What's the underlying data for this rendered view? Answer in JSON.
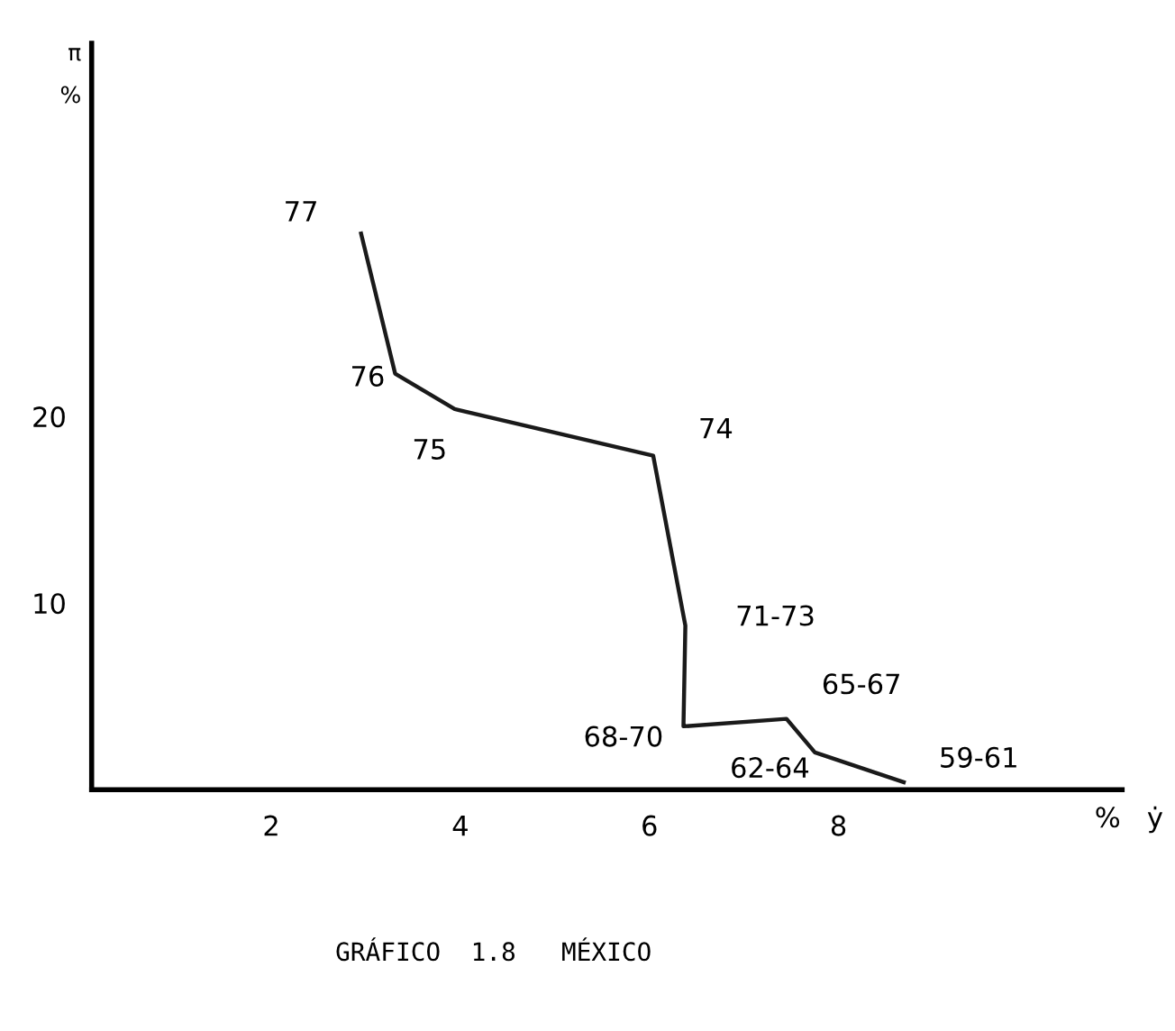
{
  "chart_data": {
    "type": "line",
    "title": "GRÁFICO  1.8   MÉXICO",
    "xlabel": "%   ẏ",
    "ylabel": "π\n%",
    "x": [
      2.95,
      3.31,
      3.94,
      6.04,
      6.38,
      6.36,
      7.45,
      7.75,
      8.69
    ],
    "series": [
      {
        "color": "#1a1a1a",
        "values": [
          29.8,
          22.3,
          20.4,
          17.9,
          8.8,
          3.4,
          3.8,
          2.0,
          0.4
        ]
      }
    ],
    "annotations": [
      {
        "text": "77",
        "x": 2.95,
        "y": 29.8
      },
      {
        "text": "76",
        "x": 3.31,
        "y": 22.3
      },
      {
        "text": "75",
        "x": 3.94,
        "y": 20.4
      },
      {
        "text": "74",
        "x": 6.04,
        "y": 17.9
      },
      {
        "text": "71-73",
        "x": 6.38,
        "y": 8.8
      },
      {
        "text": "68-70",
        "x": 6.36,
        "y": 3.4
      },
      {
        "text": "65-67",
        "x": 7.45,
        "y": 3.8
      },
      {
        "text": "62-64",
        "x": 7.75,
        "y": 2.0
      },
      {
        "text": "59-61",
        "x": 8.69,
        "y": 0.4
      }
    ],
    "xlim": [
      0.1,
      11
    ],
    "ylim": [
      0,
      40
    ],
    "xticks": [
      2,
      4,
      6,
      8
    ],
    "yticks": [
      10,
      20
    ],
    "grid": false,
    "legend": false,
    "marker": "none",
    "line_style": "solid"
  }
}
